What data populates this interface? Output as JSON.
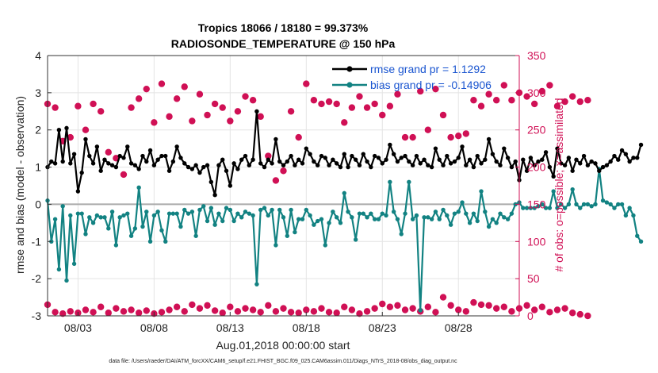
{
  "chart_data": {
    "type": "line",
    "title_line1": "Tropics 18066 / 18180 = 99.373%",
    "title_line2": "RADIOSONDE_TEMPERATURE @ 150 hPa",
    "ylabel_left": "rmse and bias (model - observation)",
    "ylabel_right": "# of obs: o=possible; ×=assimilated",
    "xlabel": "Aug.01,2018 00:00:00 start",
    "footnote": "data file: /Users/raeder/DAI/ATM_forcXX/CAM6_setup/f.e21.FHIST_BGC.f09_025.CAM6assim.011/Diags_NTrS_2018-08/obs_diag_output.nc",
    "x_range": [
      1.0,
      32.0
    ],
    "ylim_left": [
      -3,
      4
    ],
    "ylim_right": [
      0,
      350
    ],
    "yticks_left": [
      "-3",
      "-2",
      "-1",
      "0",
      "1",
      "2",
      "3",
      "4"
    ],
    "yticks_right": [
      "0",
      "50",
      "100",
      "150",
      "200",
      "250",
      "300",
      "350"
    ],
    "xtick_labels": [
      "08/03",
      "08/08",
      "08/13",
      "08/18",
      "08/23",
      "08/28"
    ],
    "xtick_days": [
      3,
      8,
      13,
      18,
      23,
      28
    ],
    "legend": {
      "rmse": "rmse grand pr = 1.1292",
      "bias": "bias grand pr = -0.14906"
    },
    "colors": {
      "rmse": "#000000",
      "bias": "#128282",
      "obs": "#d01055",
      "zero_line": "#aaaaaa",
      "legend_text": "#1a55d0"
    },
    "series": [
      {
        "name": "rmse",
        "x0": 1.0,
        "dx": 0.25,
        "values": [
          1.0,
          1.15,
          1.1,
          2.0,
          1.15,
          2.05,
          1.1,
          1.35,
          0.35,
          0.85,
          1.75,
          1.3,
          1.1,
          1.55,
          0.9,
          1.2,
          1.1,
          1.05,
          1.0,
          1.3,
          1.25,
          1.55,
          1.1,
          1.05,
          0.95,
          1.3,
          1.15,
          1.45,
          1.05,
          1.2,
          1.3,
          1.3,
          0.9,
          1.15,
          1.55,
          1.25,
          1.1,
          1.0,
          0.95,
          1.05,
          0.85,
          1.0,
          1.05,
          0.6,
          0.25,
          1.05,
          1.2,
          0.9,
          0.5,
          1.1,
          0.95,
          1.2,
          1.3,
          1.05,
          1.2,
          2.5,
          1.1,
          1.0,
          1.2,
          1.1,
          1.75,
          1.15,
          1.05,
          1.15,
          1.3,
          1.05,
          1.2,
          1.1,
          1.5,
          1.35,
          1.15,
          1.05,
          1.3,
          1.25,
          1.05,
          1.2,
          1.1,
          1.0,
          1.35,
          1.0,
          1.3,
          1.2,
          1.05,
          1.35,
          1.15,
          1.0,
          1.3,
          1.25,
          1.1,
          1.2,
          1.6,
          1.35,
          1.15,
          1.25,
          1.3,
          1.15,
          1.05,
          1.3,
          1.1,
          1.2,
          1.05,
          1.0,
          1.5,
          1.2,
          1.05,
          1.3,
          1.1,
          1.15,
          1.25,
          1.55,
          1.05,
          1.2,
          1.0,
          1.3,
          1.1,
          1.2,
          1.75,
          1.35,
          1.15,
          1.05,
          1.5,
          1.25,
          1.0,
          1.15,
          0.65,
          1.2,
          0.9,
          1.25,
          1.05,
          1.15,
          1.2,
          1.4,
          1.0,
          0.75,
          1.5,
          1.1,
          1.05,
          1.25,
          0.9,
          1.2,
          1.1,
          1.3,
          1.05,
          1.15,
          1.1,
          0.9,
          1.0,
          1.05,
          1.15,
          1.3,
          1.2,
          1.45,
          1.35,
          1.15,
          1.25,
          1.25,
          1.6
        ]
      },
      {
        "name": "bias",
        "x0": 1.0,
        "dx": 0.25,
        "values": [
          0.1,
          -1.0,
          -0.4,
          -1.75,
          -0.05,
          -2.05,
          -0.3,
          -1.6,
          -0.25,
          -0.25,
          -0.8,
          -0.35,
          -0.5,
          -0.3,
          -0.35,
          -0.35,
          -0.65,
          -0.2,
          -1.1,
          -0.35,
          -0.3,
          -0.25,
          -0.85,
          -0.65,
          0.45,
          -0.6,
          -0.2,
          -1.0,
          -0.3,
          -0.2,
          -0.7,
          -1.0,
          -0.25,
          -0.25,
          -0.25,
          -0.6,
          -0.15,
          -0.25,
          -0.2,
          -0.85,
          -0.15,
          -0.05,
          -0.45,
          -0.1,
          -0.55,
          -0.25,
          -0.45,
          -0.1,
          -0.15,
          -0.45,
          -0.25,
          -0.35,
          -0.2,
          -0.25,
          -0.3,
          -2.15,
          -0.15,
          -0.1,
          -0.3,
          -0.15,
          -1.1,
          -0.15,
          -0.35,
          -0.85,
          -0.15,
          -0.75,
          -0.4,
          -0.4,
          -0.15,
          -0.3,
          -0.55,
          -0.45,
          -0.4,
          -1.1,
          -0.5,
          -0.2,
          -0.35,
          -0.5,
          0.3,
          -0.2,
          -0.35,
          -0.95,
          -0.25,
          -0.25,
          -0.35,
          -0.25,
          -0.4,
          -0.4,
          -0.25,
          -0.3,
          0.6,
          -0.2,
          -0.4,
          -0.8,
          -0.25,
          0.6,
          -0.4,
          -0.3,
          -2.85,
          -0.35,
          -0.35,
          -0.4,
          -0.2,
          -0.4,
          -0.15,
          -0.3,
          -0.55,
          -0.25,
          -0.2,
          0.05,
          -0.25,
          -0.5,
          -0.25,
          -0.45,
          0.35,
          -0.2,
          -0.6,
          -0.4,
          -0.5,
          -0.25,
          -0.35,
          -0.4,
          -0.25,
          0.0,
          0.05,
          -0.1,
          -0.1,
          -0.1,
          -0.1,
          -0.05,
          0.0,
          -0.1,
          -0.1,
          0.35,
          -0.1,
          0.0,
          -0.1,
          0.0,
          0.4,
          0.0,
          -0.1,
          0.0,
          0.0,
          -0.05,
          0.0,
          0.95,
          0.1,
          0.05,
          0.0,
          -0.1,
          0.0,
          0.0,
          -0.3,
          -0.1,
          -0.3,
          -0.85,
          -1.0
        ]
      }
    ],
    "obs_possible": {
      "x0": 1.0,
      "dx": 0.5,
      "values": [
        285,
        280,
        235,
        240,
        282,
        250,
        285,
        275,
        220,
        212,
        190,
        280,
        292,
        305,
        260,
        312,
        268,
        292,
        308,
        262,
        298,
        270,
        285,
        280,
        262,
        275,
        295,
        290,
        268,
        215,
        182,
        195,
        275,
        240,
        312,
        290,
        285,
        288,
        285,
        260,
        280,
        295,
        280,
        285,
        270,
        282,
        298,
        240,
        240,
        302,
        250,
        305,
        270,
        240,
        242,
        245,
        290,
        282,
        298,
        290,
        310,
        290,
        300,
        295,
        285,
        302,
        310,
        282,
        288,
        295,
        288,
        290
      ]
    },
    "obs_assimilated": {
      "x0": 1.0,
      "dx": 0.5,
      "values": [
        285,
        280,
        235,
        238,
        282,
        250,
        285,
        275,
        220,
        212,
        190,
        280,
        292,
        305,
        260,
        312,
        268,
        292,
        308,
        262,
        298,
        270,
        285,
        280,
        262,
        275,
        295,
        290,
        268,
        215,
        182,
        195,
        275,
        240,
        312,
        290,
        285,
        288,
        285,
        260,
        280,
        295,
        280,
        285,
        270,
        282,
        298,
        240,
        240,
        302,
        250,
        305,
        270,
        240,
        242,
        245,
        290,
        282,
        298,
        290,
        310,
        290,
        300,
        295,
        285,
        302,
        310,
        282,
        288,
        295,
        288,
        290
      ]
    },
    "obs_low": {
      "x0": 1.0,
      "dx": 0.5,
      "values": [
        15,
        5,
        3,
        6,
        4,
        8,
        5,
        12,
        4,
        10,
        6,
        8,
        4,
        7,
        3,
        5,
        8,
        12,
        6,
        15,
        10,
        14,
        7,
        4,
        12,
        6,
        10,
        8,
        5,
        14,
        6,
        10,
        5,
        4,
        8,
        6,
        10,
        5,
        4,
        12,
        8,
        3,
        6,
        10,
        16,
        12,
        14,
        8,
        10,
        6,
        12,
        5,
        25,
        14,
        8,
        6,
        18,
        15,
        14,
        10,
        12,
        6,
        10,
        14,
        8,
        12,
        5,
        8,
        10,
        4,
        2,
        0
      ]
    }
  }
}
